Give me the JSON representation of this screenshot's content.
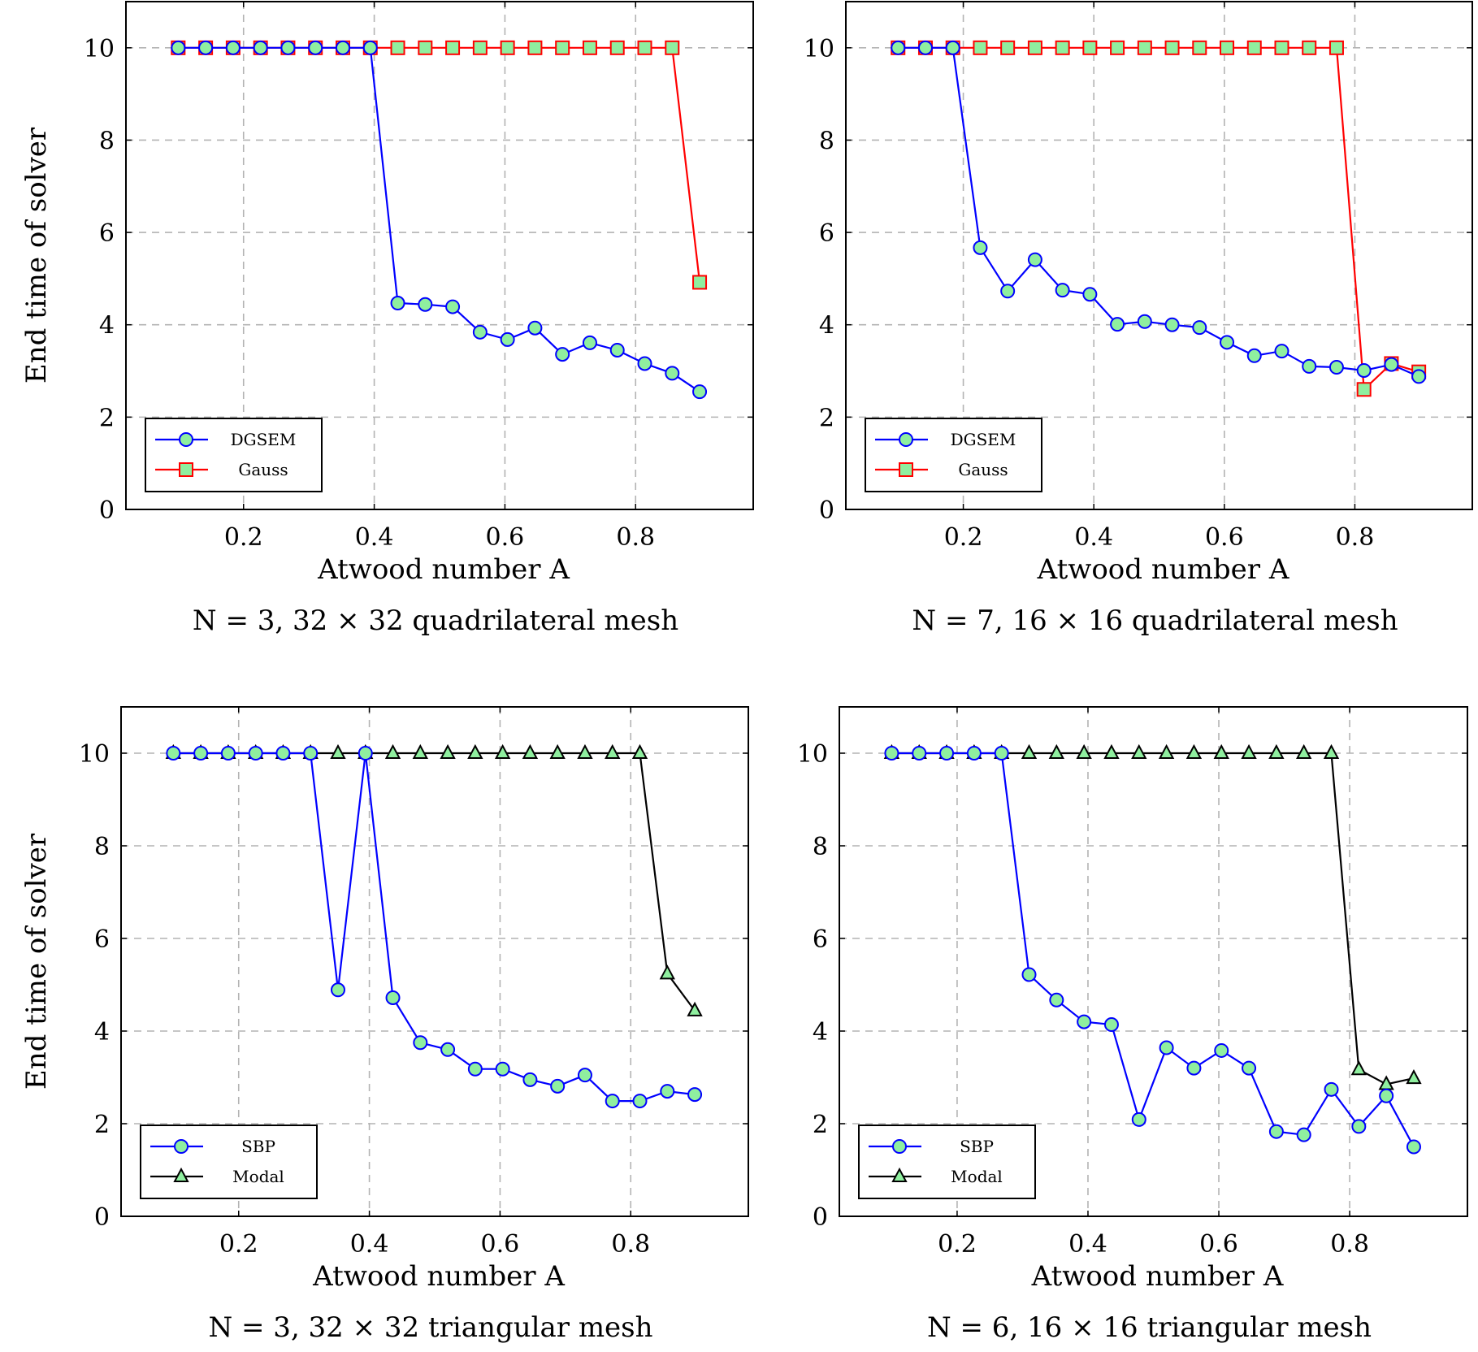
{
  "chart_data": [
    {
      "type": "line",
      "xlabel": "Atwood number A",
      "ylabel": "End time of solver",
      "caption": "N = 3, 32 × 32 quadrilateral mesh",
      "xlim": [
        0.02,
        0.98
      ],
      "ylim": [
        0,
        11
      ],
      "xticks": [
        "0.2",
        "0.4",
        "0.6",
        "0.8"
      ],
      "yticks": [
        "0",
        "2",
        "4",
        "6",
        "8",
        "10"
      ],
      "grid": true,
      "legend_position": "bottom-left",
      "series": [
        {
          "name": "DGSEM",
          "color": "#0000ff",
          "marker": "circle",
          "x": [
            0.1,
            0.142,
            0.184,
            0.226,
            0.268,
            0.31,
            0.352,
            0.394,
            0.436,
            0.478,
            0.52,
            0.562,
            0.604,
            0.646,
            0.688,
            0.73,
            0.772,
            0.814,
            0.856,
            0.898
          ],
          "y": [
            10,
            10,
            10,
            10,
            10,
            10,
            10,
            10,
            4.47,
            4.44,
            4.39,
            3.84,
            3.68,
            3.93,
            3.36,
            3.61,
            3.45,
            3.16,
            2.95,
            2.55
          ]
        },
        {
          "name": "Gauss",
          "color": "#ff0000",
          "marker": "square",
          "x": [
            0.1,
            0.142,
            0.184,
            0.226,
            0.268,
            0.31,
            0.352,
            0.394,
            0.436,
            0.478,
            0.52,
            0.562,
            0.604,
            0.646,
            0.688,
            0.73,
            0.772,
            0.814,
            0.856,
            0.898
          ],
          "y": [
            10,
            10,
            10,
            10,
            10,
            10,
            10,
            10,
            10,
            10,
            10,
            10,
            10,
            10,
            10,
            10,
            10,
            10,
            10,
            4.92
          ]
        }
      ]
    },
    {
      "type": "line",
      "xlabel": "Atwood number A",
      "ylabel": "",
      "caption": "N = 7, 16 × 16 quadrilateral mesh",
      "xlim": [
        0.02,
        0.98
      ],
      "ylim": [
        0,
        11
      ],
      "xticks": [
        "0.2",
        "0.4",
        "0.6",
        "0.8"
      ],
      "yticks": [
        "0",
        "2",
        "4",
        "6",
        "8",
        "10"
      ],
      "grid": true,
      "legend_position": "bottom-left",
      "series": [
        {
          "name": "DGSEM",
          "color": "#0000ff",
          "marker": "circle",
          "x": [
            0.1,
            0.142,
            0.184,
            0.226,
            0.268,
            0.31,
            0.352,
            0.394,
            0.436,
            0.478,
            0.52,
            0.562,
            0.604,
            0.646,
            0.688,
            0.73,
            0.772,
            0.814,
            0.856,
            0.898
          ],
          "y": [
            10,
            10,
            10,
            5.67,
            4.73,
            5.41,
            4.75,
            4.66,
            4.01,
            4.07,
            4.0,
            3.94,
            3.62,
            3.33,
            3.43,
            3.1,
            3.08,
            3.01,
            3.14,
            2.88
          ]
        },
        {
          "name": "Gauss",
          "color": "#ff0000",
          "marker": "square",
          "x": [
            0.1,
            0.142,
            0.184,
            0.226,
            0.268,
            0.31,
            0.352,
            0.394,
            0.436,
            0.478,
            0.52,
            0.562,
            0.604,
            0.646,
            0.688,
            0.73,
            0.772,
            0.814,
            0.856,
            0.898
          ],
          "y": [
            10,
            10,
            10,
            10,
            10,
            10,
            10,
            10,
            10,
            10,
            10,
            10,
            10,
            10,
            10,
            10,
            10,
            2.6,
            3.16,
            2.98
          ]
        }
      ]
    },
    {
      "type": "line",
      "xlabel": "Atwood number A",
      "ylabel": "End time of solver",
      "caption": "N = 3, 32 × 32 triangular mesh",
      "xlim": [
        0.02,
        0.98
      ],
      "ylim": [
        0,
        11
      ],
      "xticks": [
        "0.2",
        "0.4",
        "0.6",
        "0.8"
      ],
      "yticks": [
        "0",
        "2",
        "4",
        "6",
        "8",
        "10"
      ],
      "grid": true,
      "legend_position": "bottom-left",
      "series": [
        {
          "name": "SBP",
          "color": "#0000ff",
          "marker": "circle",
          "x": [
            0.1,
            0.142,
            0.184,
            0.226,
            0.268,
            0.31,
            0.352,
            0.394,
            0.436,
            0.478,
            0.52,
            0.562,
            0.604,
            0.646,
            0.688,
            0.73,
            0.772,
            0.814,
            0.856,
            0.898
          ],
          "y": [
            10,
            10,
            10,
            10,
            10,
            10,
            4.89,
            10,
            4.72,
            3.75,
            3.6,
            3.18,
            3.18,
            2.95,
            2.81,
            3.05,
            2.49,
            2.49,
            2.7,
            2.63
          ]
        },
        {
          "name": "Modal",
          "color": "#000000",
          "marker": "triangle",
          "x": [
            0.1,
            0.142,
            0.184,
            0.226,
            0.268,
            0.31,
            0.352,
            0.394,
            0.436,
            0.478,
            0.52,
            0.562,
            0.604,
            0.646,
            0.688,
            0.73,
            0.772,
            0.814,
            0.856,
            0.898
          ],
          "y": [
            10,
            10,
            10,
            10,
            10,
            10,
            10,
            10,
            10,
            10,
            10,
            10,
            10,
            10,
            10,
            10,
            10,
            10,
            5.24,
            4.44
          ]
        }
      ]
    },
    {
      "type": "line",
      "xlabel": "Atwood number A",
      "ylabel": "",
      "caption": "N = 6, 16 × 16 triangular mesh",
      "xlim": [
        0.02,
        0.98
      ],
      "ylim": [
        0,
        11
      ],
      "xticks": [
        "0.2",
        "0.4",
        "0.6",
        "0.8"
      ],
      "yticks": [
        "0",
        "2",
        "4",
        "6",
        "8",
        "10"
      ],
      "grid": true,
      "legend_position": "bottom-left",
      "series": [
        {
          "name": "SBP",
          "color": "#0000ff",
          "marker": "circle",
          "x": [
            0.1,
            0.142,
            0.184,
            0.226,
            0.268,
            0.31,
            0.352,
            0.394,
            0.436,
            0.478,
            0.52,
            0.562,
            0.604,
            0.646,
            0.688,
            0.73,
            0.772,
            0.814,
            0.856,
            0.898
          ],
          "y": [
            10,
            10,
            10,
            10,
            10,
            5.22,
            4.67,
            4.2,
            4.14,
            2.09,
            3.64,
            3.2,
            3.58,
            3.2,
            1.83,
            1.76,
            2.74,
            1.94,
            2.6,
            1.5
          ]
        },
        {
          "name": "Modal",
          "color": "#000000",
          "marker": "triangle",
          "x": [
            0.1,
            0.142,
            0.184,
            0.226,
            0.268,
            0.31,
            0.352,
            0.394,
            0.436,
            0.478,
            0.52,
            0.562,
            0.604,
            0.646,
            0.688,
            0.73,
            0.772,
            0.814,
            0.856,
            0.898
          ],
          "y": [
            10,
            10,
            10,
            10,
            10,
            10,
            10,
            10,
            10,
            10,
            10,
            10,
            10,
            10,
            10,
            10,
            10,
            3.17,
            2.85,
            2.98
          ]
        }
      ]
    }
  ],
  "marker_fill": "#8fef9f"
}
